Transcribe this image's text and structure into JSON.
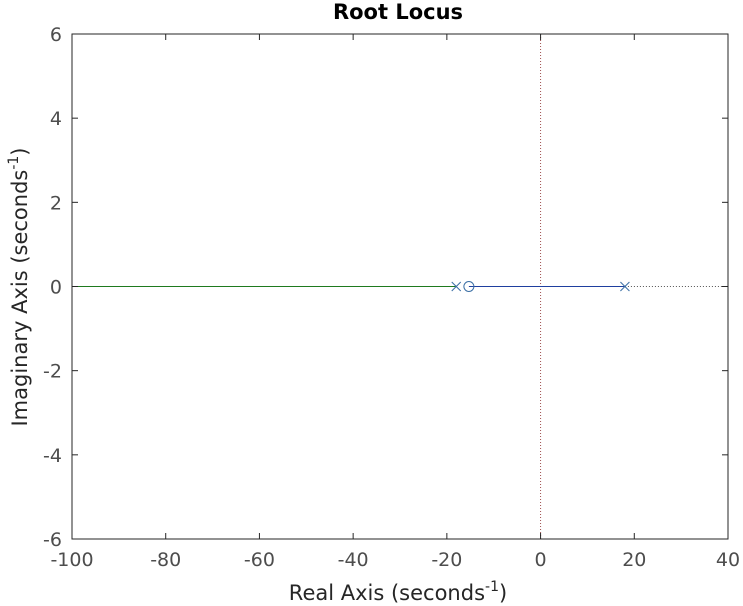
{
  "chart_data": {
    "type": "line",
    "title": "Root Locus",
    "xlabel": {
      "main": "Real Axis (seconds",
      "sup": "-1",
      "close": ")"
    },
    "ylabel": {
      "main": "Imaginary Axis (seconds",
      "sup": "-1",
      "close": ")"
    },
    "xlim": [
      -100,
      40
    ],
    "ylim": [
      -6,
      6
    ],
    "xticks": [
      -100,
      -80,
      -60,
      -40,
      -20,
      0,
      20,
      40
    ],
    "yticks": [
      -6,
      -4,
      -2,
      0,
      2,
      4,
      6
    ],
    "grid": false,
    "poles": [
      {
        "x": -18,
        "y": 0
      },
      {
        "x": 18,
        "y": 0
      }
    ],
    "zeros": [
      {
        "x": -15.3,
        "y": 0
      }
    ],
    "series": [
      {
        "color": "#1f3f9f",
        "x": [
          18,
          -15.3
        ],
        "y": [
          0,
          0
        ]
      },
      {
        "color": "#1f7a1f",
        "x": [
          -18,
          -100
        ],
        "y": [
          0,
          0
        ]
      }
    ],
    "asymptotes": [
      {
        "orientation": "vertical",
        "value": 0,
        "color": "#a05050"
      },
      {
        "orientation": "horizontal",
        "value": 0,
        "from": 18,
        "to": 40,
        "color": "#555555"
      }
    ],
    "colors": {
      "marker": "#3b6fa5",
      "axis": "#262626"
    }
  }
}
